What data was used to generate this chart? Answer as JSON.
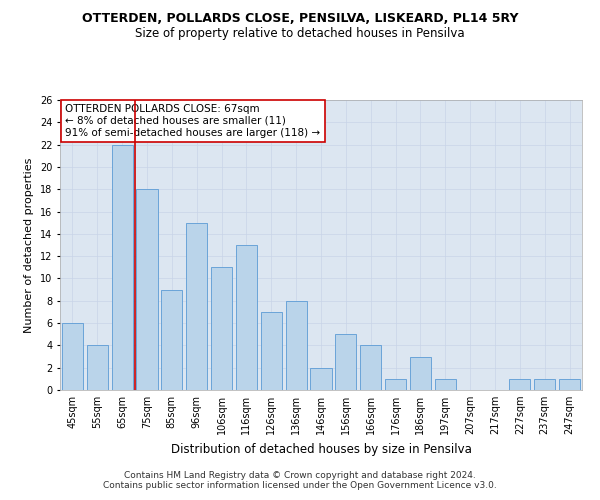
{
  "title": "OTTERDEN, POLLARDS CLOSE, PENSILVA, LISKEARD, PL14 5RY",
  "subtitle": "Size of property relative to detached houses in Pensilva",
  "xlabel": "Distribution of detached houses by size in Pensilva",
  "ylabel": "Number of detached properties",
  "categories": [
    "45sqm",
    "55sqm",
    "65sqm",
    "75sqm",
    "85sqm",
    "96sqm",
    "106sqm",
    "116sqm",
    "126sqm",
    "136sqm",
    "146sqm",
    "156sqm",
    "166sqm",
    "176sqm",
    "186sqm",
    "197sqm",
    "207sqm",
    "217sqm",
    "227sqm",
    "237sqm",
    "247sqm"
  ],
  "values": [
    6,
    4,
    22,
    18,
    9,
    15,
    11,
    13,
    7,
    8,
    2,
    5,
    4,
    1,
    3,
    1,
    0,
    0,
    1,
    1,
    1
  ],
  "bar_color": "#bad4ea",
  "bar_edge_color": "#5b9bd5",
  "grid_color": "#c8d4e8",
  "bg_color": "#dce6f1",
  "property_line_x": 2.5,
  "annotation_text": "OTTERDEN POLLARDS CLOSE: 67sqm\n← 8% of detached houses are smaller (11)\n91% of semi-detached houses are larger (118) →",
  "annotation_box_color": "#ffffff",
  "annotation_box_edge": "#cc0000",
  "property_line_color": "#cc0000",
  "ylim": [
    0,
    26
  ],
  "yticks": [
    0,
    2,
    4,
    6,
    8,
    10,
    12,
    14,
    16,
    18,
    20,
    22,
    24,
    26
  ],
  "footer": "Contains HM Land Registry data © Crown copyright and database right 2024.\nContains public sector information licensed under the Open Government Licence v3.0.",
  "title_fontsize": 9,
  "subtitle_fontsize": 8.5,
  "xlabel_fontsize": 8.5,
  "ylabel_fontsize": 8,
  "tick_fontsize": 7,
  "annotation_fontsize": 7.5,
  "footer_fontsize": 6.5
}
